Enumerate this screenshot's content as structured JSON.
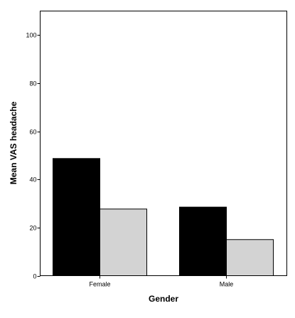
{
  "chart_data": {
    "type": "bar",
    "title": "",
    "xlabel": "Gender",
    "ylabel": "Mean VAS headache",
    "categories": [
      "Female",
      "Male"
    ],
    "series": [
      {
        "values": [
          48.7,
          28.5
        ],
        "color": "#000000"
      },
      {
        "values": [
          27.7,
          15.0
        ],
        "color": "#d3d3d3"
      }
    ],
    "ylim": [
      0,
      110
    ],
    "yticks": [
      0,
      20,
      40,
      60,
      80,
      100
    ],
    "ytick_labels": [
      "0",
      "20",
      "40",
      "60",
      "80",
      "100"
    ],
    "grid": false,
    "legend": "none"
  }
}
